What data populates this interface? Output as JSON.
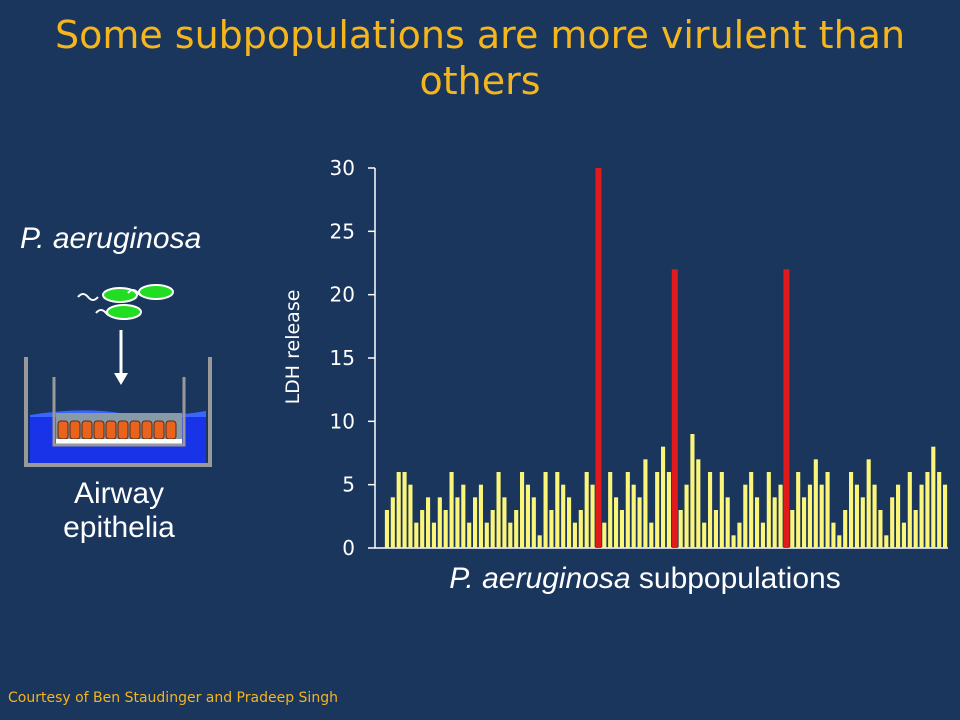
{
  "slide": {
    "title": "Some subpopulations are more virulent than others",
    "species_label": "P. aeruginosa",
    "airway_label": "Airway epithelia",
    "credit": "Courtesy of Ben Staudinger and Pradeep Singh"
  },
  "colors": {
    "background": "#1a365d",
    "title": "#f5b51c",
    "bar": "#fbf57a",
    "highlight_bar": "#e11b1b",
    "bacteria": "#22dd22",
    "medium": "#1833e8",
    "cells": "#e8641e"
  },
  "chart_data": {
    "type": "bar",
    "title": "",
    "ylabel": "LDH release",
    "xlabel_italic": "P. aeruginosa",
    "xlabel_rest": " subpopulations",
    "ylim": [
      0,
      30
    ],
    "yticks": [
      0,
      5,
      10,
      15,
      20,
      25,
      30
    ],
    "grid": false,
    "series": [
      {
        "values": [
          3,
          4,
          6,
          6,
          5,
          2,
          3,
          4,
          2,
          4,
          3,
          6,
          4,
          5,
          2,
          4,
          5,
          2,
          3,
          6,
          4,
          2,
          3,
          6,
          5,
          4,
          1,
          6,
          3,
          6,
          5,
          4,
          2,
          3,
          6,
          5,
          30,
          2,
          6,
          4,
          3,
          6,
          5,
          4,
          7,
          2,
          6,
          8,
          6,
          22,
          3,
          5,
          9,
          7,
          2,
          6,
          3,
          6,
          4,
          1,
          2,
          5,
          6,
          4,
          2,
          6,
          4,
          5,
          22,
          3,
          6,
          4,
          5,
          7,
          5,
          6,
          2,
          1,
          3,
          6,
          5,
          4,
          7,
          5,
          3,
          1,
          4,
          5,
          2,
          6,
          3,
          5,
          6,
          8,
          6,
          5
        ],
        "highlight_indices": [
          36,
          49,
          68
        ]
      }
    ]
  }
}
